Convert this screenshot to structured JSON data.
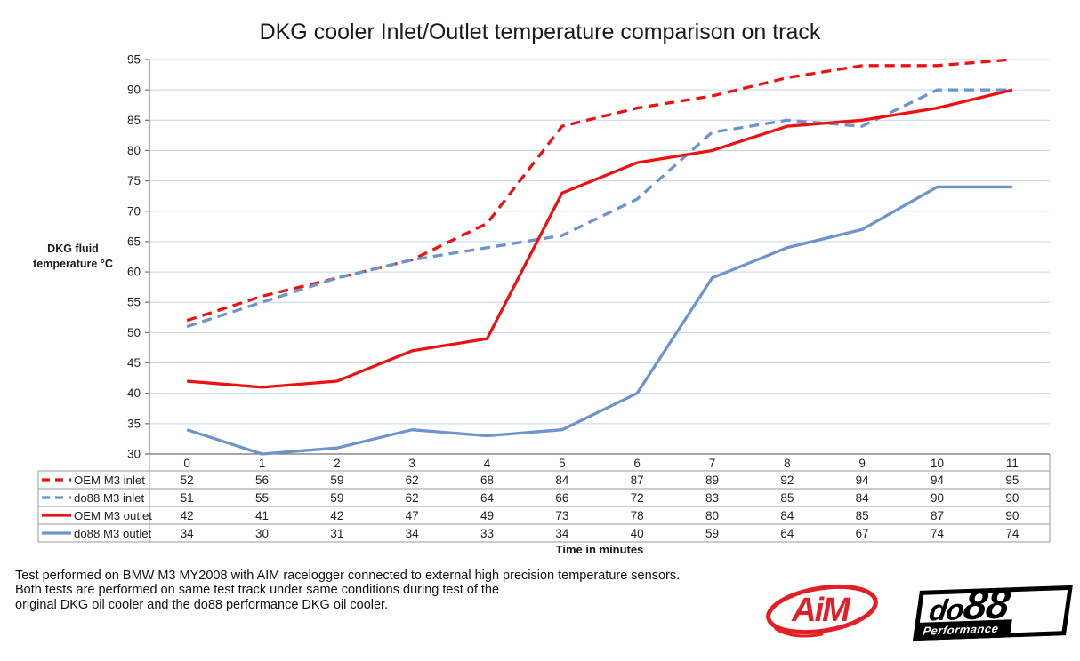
{
  "title": "DKG cooler Inlet/Outlet temperature comparison on track",
  "y_axis_label": {
    "line1": "DKG fluid",
    "line2": "temperature °C"
  },
  "x_axis_label": "Time in minutes",
  "chart_data": {
    "type": "line",
    "categories": [
      0,
      1,
      2,
      3,
      4,
      5,
      6,
      7,
      8,
      9,
      10,
      11
    ],
    "series": [
      {
        "name": "OEM M3 inlet",
        "style": "dashed",
        "color": "#ED1111",
        "values": [
          52,
          56,
          59,
          62,
          68,
          84,
          87,
          89,
          92,
          94,
          94,
          95
        ]
      },
      {
        "name": "do88 M3 inlet",
        "style": "dashed",
        "color": "#6D94CC",
        "values": [
          51,
          55,
          59,
          62,
          64,
          66,
          72,
          83,
          85,
          84,
          90,
          90
        ]
      },
      {
        "name": "OEM M3 outlet",
        "style": "solid",
        "color": "#ED1111",
        "values": [
          42,
          41,
          42,
          47,
          49,
          73,
          78,
          80,
          84,
          85,
          87,
          90
        ]
      },
      {
        "name": "do88 M3 outlet",
        "style": "solid",
        "color": "#6D94CC",
        "values": [
          34,
          30,
          31,
          34,
          33,
          34,
          40,
          59,
          64,
          67,
          74,
          74
        ]
      }
    ],
    "title": "DKG cooler Inlet/Outlet temperature comparison on track",
    "xlabel": "Time in minutes",
    "ylabel": "DKG fluid temperature °C",
    "ylim": [
      30,
      95
    ],
    "ytick_step": 5,
    "grid": true,
    "legend_position": "data-table-left"
  },
  "footnote": [
    "Test performed on BMW M3 MY2008 with AIM racelogger connected to external high precision temperature sensors.",
    "Both tests are performed on same test track under same conditions during test of the",
    "original DKG oil cooler and the do88 performance DKG oil cooler."
  ],
  "logos": {
    "aim": {
      "text": "AiM"
    },
    "do88": {
      "part1": "do",
      "part2": "88",
      "sub": "Performance"
    }
  },
  "colors": {
    "oem_red": "#ED1111",
    "do88_blue": "#6D94CC",
    "gridline": "#C4D4E9",
    "axis": "#707070",
    "table_border": "#999999",
    "text": "#1F1F1F",
    "aim_red": "#E31E24"
  }
}
